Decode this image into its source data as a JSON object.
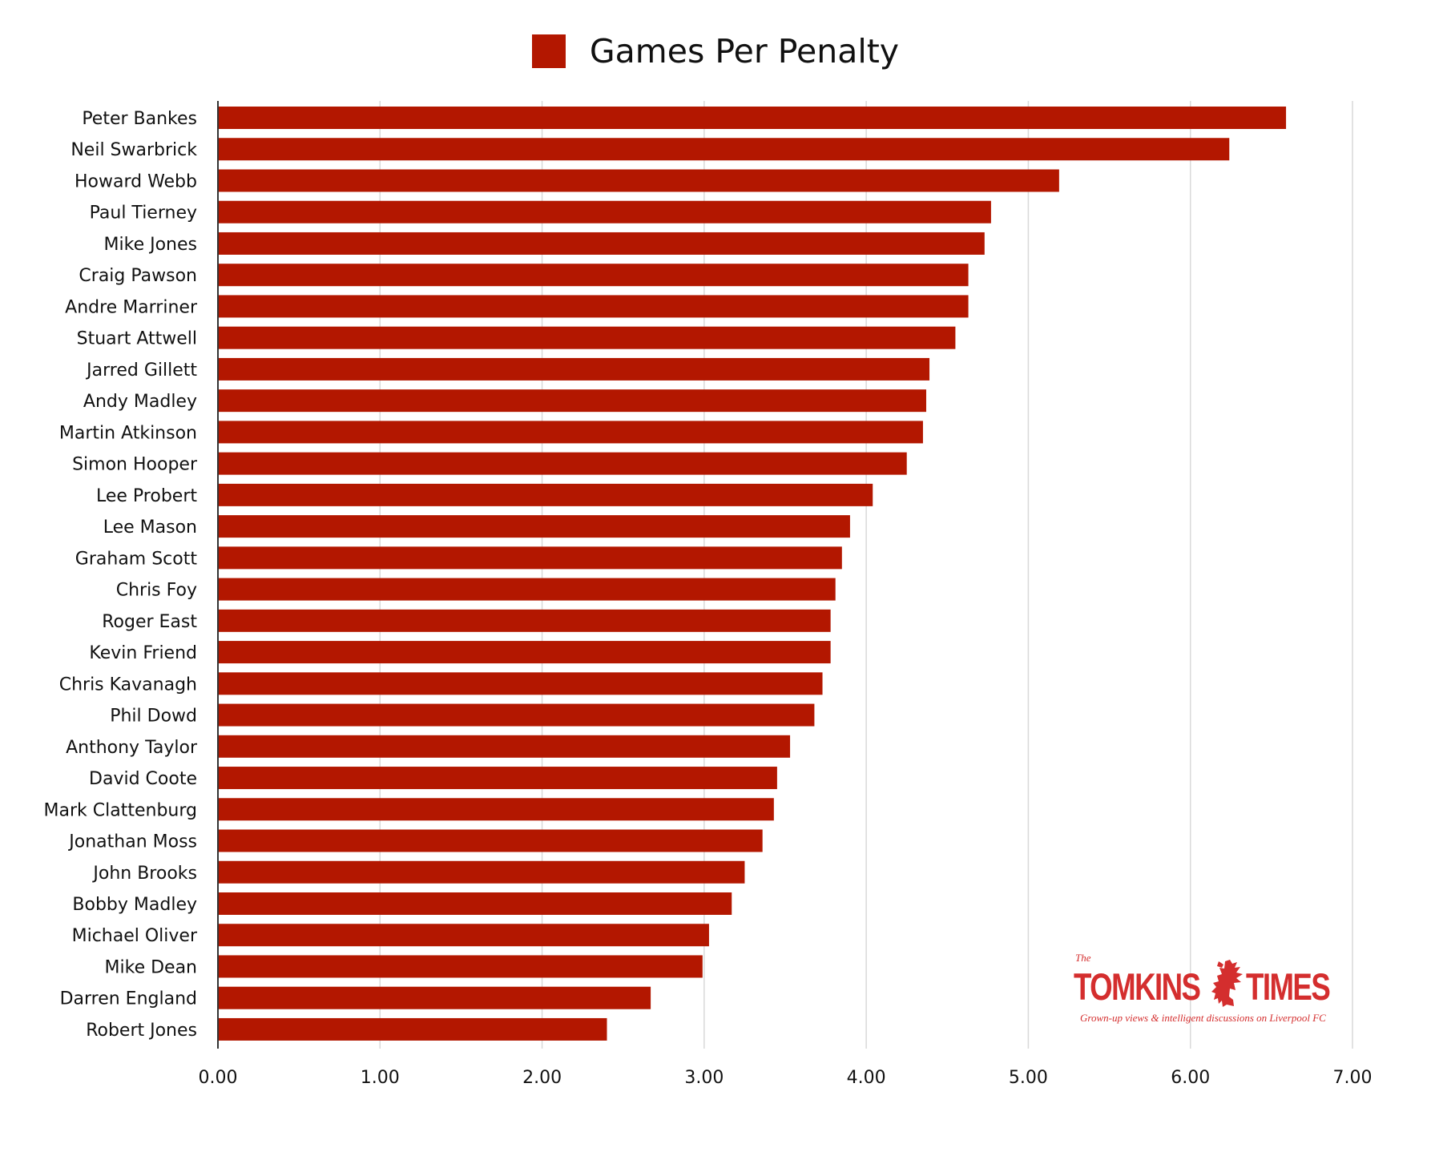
{
  "chart_data": {
    "type": "bar",
    "orientation": "horizontal",
    "legend": {
      "entries": [
        "Games Per Penalty"
      ],
      "placement": "top-center"
    },
    "series": [
      {
        "name": "Games Per Penalty",
        "color": "#b31700",
        "values": [
          6.59,
          6.24,
          5.19,
          4.77,
          4.73,
          4.63,
          4.63,
          4.55,
          4.39,
          4.37,
          4.35,
          4.25,
          4.04,
          3.9,
          3.85,
          3.81,
          3.78,
          3.78,
          3.73,
          3.68,
          3.53,
          3.45,
          3.43,
          3.36,
          3.25,
          3.17,
          3.03,
          2.99,
          2.67,
          2.4
        ]
      }
    ],
    "categories": [
      "Peter Bankes",
      "Neil Swarbrick",
      "Howard Webb",
      "Paul Tierney",
      "Mike Jones",
      "Craig Pawson",
      "Andre Marriner",
      "Stuart Attwell",
      "Jarred Gillett",
      "Andy Madley",
      "Martin Atkinson",
      "Simon Hooper",
      "Lee Probert",
      "Lee Mason",
      "Graham Scott",
      "Chris Foy",
      "Roger East",
      "Kevin Friend",
      "Chris Kavanagh",
      "Phil Dowd",
      "Anthony Taylor",
      "David Coote",
      "Mark Clattenburg",
      "Jonathan Moss",
      "John Brooks",
      "Bobby Madley",
      "Michael Oliver",
      "Mike Dean",
      "Darren England",
      "Robert Jones"
    ],
    "xlim": [
      0,
      7
    ],
    "x_ticks": [
      "0.00",
      "1.00",
      "2.00",
      "3.00",
      "4.00",
      "5.00",
      "6.00",
      "7.00"
    ],
    "grid": "vertical",
    "title": "",
    "xlabel": "",
    "ylabel": ""
  },
  "watermark": {
    "the": "The",
    "word_left": "TOMKINS",
    "word_right": "TIMES",
    "tagline": "Grown-up views & intelligent discussions on Liverpool FC",
    "color": "#d42e2e",
    "icon": "liverbird-icon"
  },
  "colors": {
    "bar": "#b31700",
    "grid": "#d9d9d9",
    "axis": "#333333",
    "text": "#111111"
  }
}
